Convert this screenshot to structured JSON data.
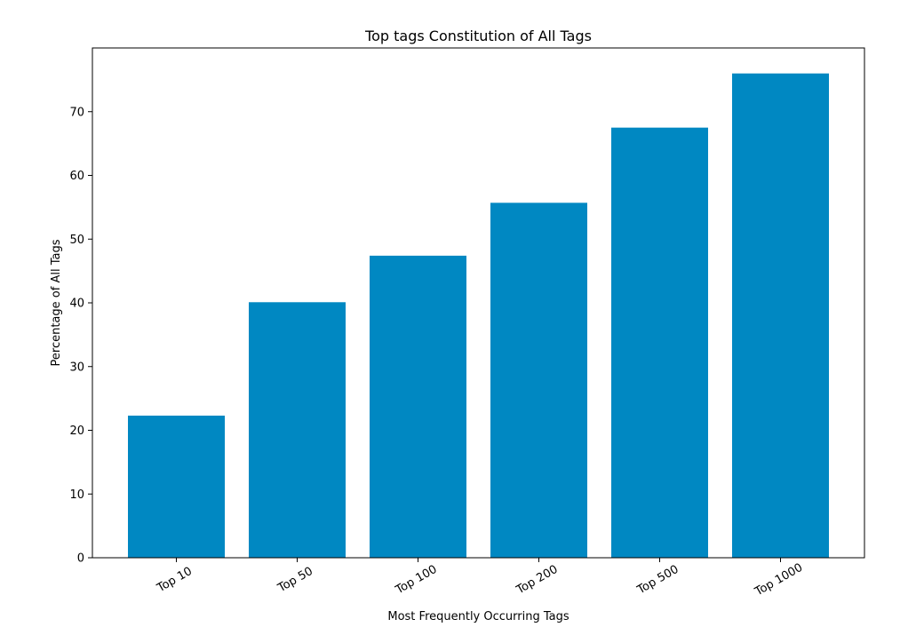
{
  "chart_data": {
    "type": "bar",
    "title": "Top tags Constitution of All Tags",
    "xlabel": "Most Frequently Occurring Tags",
    "ylabel": "Percentage of All Tags",
    "categories": [
      "Top 10",
      "Top 50",
      "Top 100",
      "Top 200",
      "Top 500",
      "Top 1000"
    ],
    "values": [
      22.3,
      40.1,
      47.4,
      55.7,
      67.5,
      76.0
    ],
    "ylim": [
      0,
      80
    ],
    "yticks": [
      0,
      10,
      20,
      30,
      40,
      50,
      60,
      70
    ],
    "bar_color": "#0088c2",
    "grid": false,
    "legend": "none"
  }
}
